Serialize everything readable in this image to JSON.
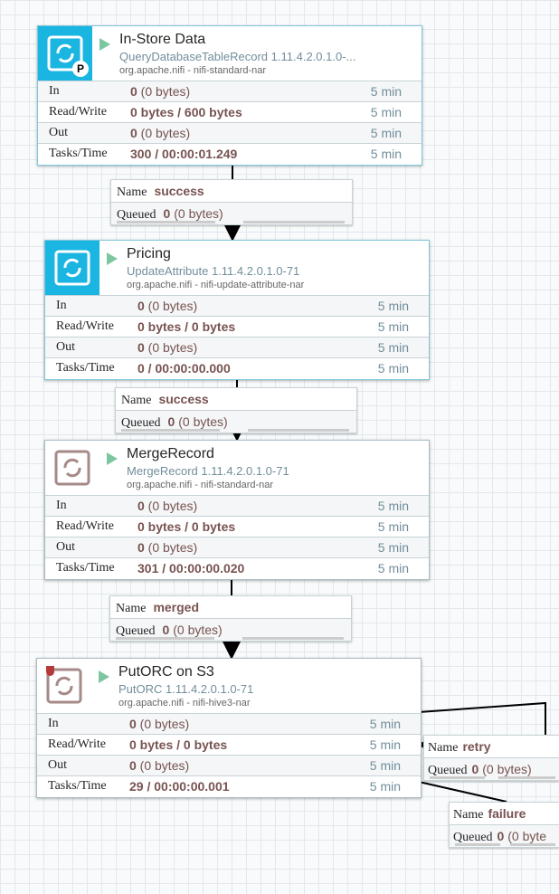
{
  "processors": [
    {
      "name": "In-Store Data",
      "type": "QueryDatabaseTableRecord 1.11.4.2.0.1.0-...",
      "bundle": "org.apache.nifi - nifi-standard-nar",
      "icon": "processor-icon",
      "icon_style": "blue",
      "badge": "P",
      "selected": true,
      "stats": [
        {
          "label": "In",
          "value": "0",
          "extra": " (0 bytes)",
          "time": "5 min"
        },
        {
          "label": "Read/Write",
          "value": "0 bytes / 600 bytes",
          "extra": "",
          "time": "5 min"
        },
        {
          "label": "Out",
          "value": "0",
          "extra": " (0 bytes)",
          "time": "5 min"
        },
        {
          "label": "Tasks/Time",
          "value": "300 / 00:00:01.249",
          "extra": "",
          "time": "5 min"
        }
      ]
    },
    {
      "name": "Pricing",
      "type": "UpdateAttribute 1.11.4.2.0.1.0-71",
      "bundle": "org.apache.nifi - nifi-update-attribute-nar",
      "icon": "processor-icon",
      "icon_style": "blue",
      "selected": true,
      "stats": [
        {
          "label": "In",
          "value": "0",
          "extra": " (0 bytes)",
          "time": "5 min"
        },
        {
          "label": "Read/Write",
          "value": "0 bytes / 0 bytes",
          "extra": "",
          "time": "5 min"
        },
        {
          "label": "Out",
          "value": "0",
          "extra": " (0 bytes)",
          "time": "5 min"
        },
        {
          "label": "Tasks/Time",
          "value": "0 / 00:00:00.000",
          "extra": "",
          "time": "5 min"
        }
      ]
    },
    {
      "name": "MergeRecord",
      "type": "MergeRecord 1.11.4.2.0.1.0-71",
      "bundle": "org.apache.nifi - nifi-standard-nar",
      "icon": "processor-icon",
      "icon_style": "plain",
      "stats": [
        {
          "label": "In",
          "value": "0",
          "extra": " (0 bytes)",
          "time": "5 min"
        },
        {
          "label": "Read/Write",
          "value": "0 bytes / 0 bytes",
          "extra": "",
          "time": "5 min"
        },
        {
          "label": "Out",
          "value": "0",
          "extra": " (0 bytes)",
          "time": "5 min"
        },
        {
          "label": "Tasks/Time",
          "value": "301 / 00:00:00.020",
          "extra": "",
          "time": "5 min"
        }
      ]
    },
    {
      "name": "PutORC on S3",
      "type": "PutORC 1.11.4.2.0.1.0-71",
      "bundle": "org.apache.nifi - nifi-hive3-nar",
      "icon": "processor-icon",
      "icon_style": "plain",
      "restricted": true,
      "stats": [
        {
          "label": "In",
          "value": "0",
          "extra": " (0 bytes)",
          "time": "5 min"
        },
        {
          "label": "Read/Write",
          "value": "0 bytes / 0 bytes",
          "extra": "",
          "time": "5 min"
        },
        {
          "label": "Out",
          "value": "0",
          "extra": " (0 bytes)",
          "time": "5 min"
        },
        {
          "label": "Tasks/Time",
          "value": "29 / 00:00:00.001",
          "extra": "",
          "time": "5 min"
        }
      ]
    }
  ],
  "connections": [
    {
      "name_label": "Name",
      "name": "success",
      "queued_label": "Queued",
      "queued": "0",
      "queued_extra": " (0 bytes)"
    },
    {
      "name_label": "Name",
      "name": "success",
      "queued_label": "Queued",
      "queued": "0",
      "queued_extra": " (0 bytes)"
    },
    {
      "name_label": "Name",
      "name": "merged",
      "queued_label": "Queued",
      "queued": "0",
      "queued_extra": " (0 bytes)"
    },
    {
      "name_label": "Name",
      "name": "retry",
      "queued_label": "Queued",
      "queued": "0",
      "queued_extra": " (0 bytes)"
    },
    {
      "name_label": "Name",
      "name": "failure",
      "queued_label": "Queued",
      "queued": "0",
      "queued_extra": " (0 byte"
    }
  ]
}
